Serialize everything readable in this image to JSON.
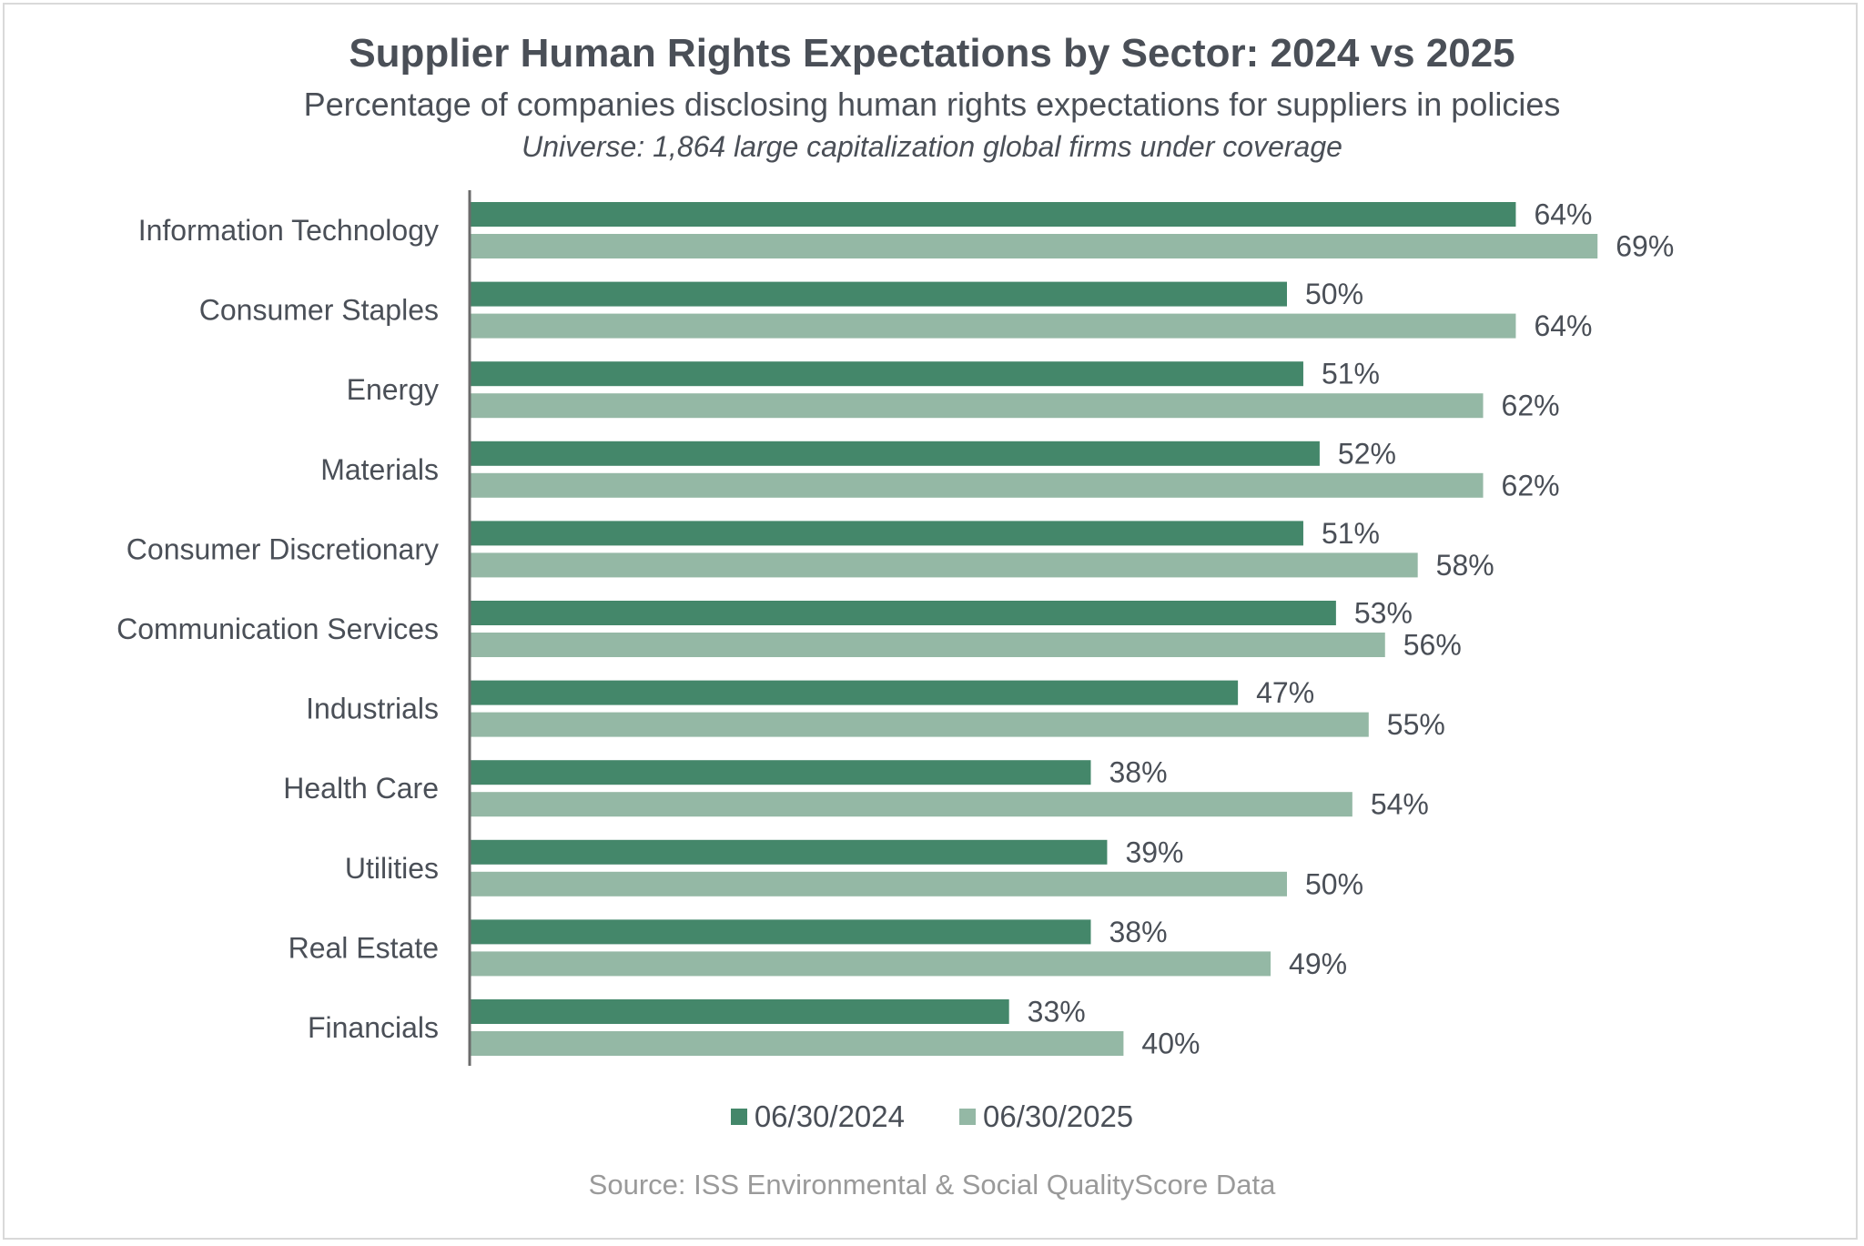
{
  "chart_data": {
    "type": "bar",
    "orientation": "horizontal",
    "title": "Supplier Human Rights Expectations by Sector: 2024 vs 2025",
    "subtitle": "Percentage of companies disclosing human rights expectations for suppliers in policies",
    "note": "Universe: 1,864 large capitalization global firms under coverage",
    "source": "Source: ISS Environmental & Social QualityScore Data",
    "categories": [
      "Information Technology",
      "Consumer Staples",
      "Energy",
      "Materials",
      "Consumer Discretionary",
      "Communication Services",
      "Industrials",
      "Health Care",
      "Utilities",
      "Real Estate",
      "Financials"
    ],
    "series": [
      {
        "name": "06/30/2024",
        "color": "#44876a",
        "values": [
          64,
          50,
          51,
          52,
          51,
          53,
          47,
          38,
          39,
          38,
          33
        ]
      },
      {
        "name": "06/30/2025",
        "color": "#94b8a5",
        "values": [
          69,
          64,
          62,
          62,
          58,
          56,
          55,
          54,
          50,
          49,
          40
        ]
      }
    ],
    "value_format": "percent",
    "xlim": [
      0,
      100
    ],
    "grid": false,
    "legend": "bottom",
    "label_color": "#4a4f57",
    "axis_color": "#6b6b6b"
  }
}
